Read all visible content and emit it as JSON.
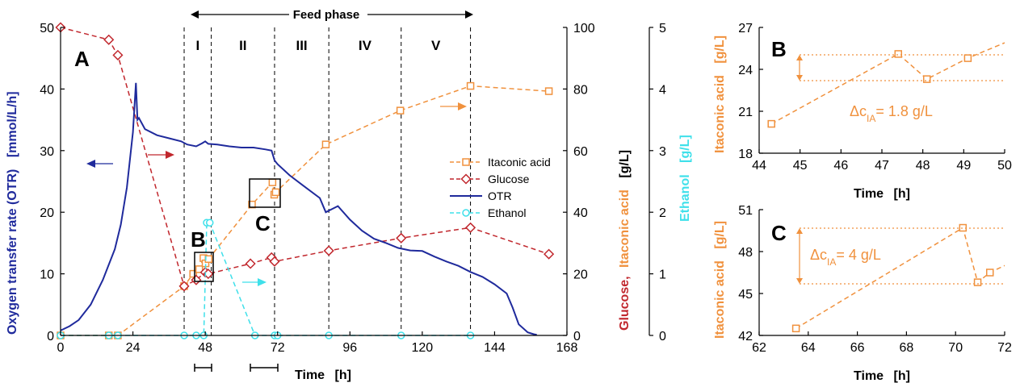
{
  "colors": {
    "itaconic": "#f0913d",
    "glucose": "#c1272d",
    "otr": "#1f2a9c",
    "ethanol": "#3fe0ea",
    "axis": "#000000"
  },
  "labels": {
    "main_letter": "A",
    "inset_b_letter": "B",
    "inset_c_letter": "C",
    "box_b_letter": "B",
    "box_c_letter": "C",
    "feed_phase": "Feed phase",
    "phases": [
      "I",
      "II",
      "III",
      "IV",
      "V"
    ],
    "left_ylabel_otr": "Oxygen transfer rate (OTR)",
    "left_ylabel_unit": "[mmol/L/h]",
    "right1_glucose": "Glucose,",
    "right1_itaconic": "Itaconic acid",
    "right1_unit": "[g/L]",
    "right2_ethanol": "Ethanol",
    "right2_unit": "[g/L]",
    "xlabel_time": "Time",
    "xlabel_unit": "[h]",
    "inset_ylabel": "Itaconic acid",
    "inset_yunit": "[g/L]",
    "delta_b_prefix": "Δc",
    "delta_b_sub": "IA",
    "delta_b_value": "= 1.8 g/L",
    "delta_c_prefix": "Δc",
    "delta_c_sub": "IA",
    "delta_c_value": "= 4 g/L"
  },
  "chart_data": [
    {
      "id": "main",
      "type": "line",
      "x_axis": {
        "ticks": [
          0,
          24,
          48,
          72,
          96,
          120,
          144,
          168
        ],
        "range": [
          0,
          168
        ]
      },
      "y_left": {
        "ticks": [
          0,
          10,
          20,
          30,
          40,
          50
        ],
        "range": [
          0,
          50
        ]
      },
      "y_right1": {
        "ticks": [
          0,
          20,
          40,
          60,
          80,
          100
        ],
        "range": [
          0,
          100
        ]
      },
      "y_right2": {
        "ticks": [
          0,
          1,
          2,
          3,
          4,
          5
        ],
        "range": [
          0,
          5
        ]
      },
      "phase_boundaries_h": [
        41,
        50,
        71,
        89,
        113,
        136
      ],
      "legend": [
        "Itaconic acid",
        "Glucose",
        "OTR",
        "Ethanol"
      ],
      "legend_position": "right",
      "series": [
        {
          "name": "Itaconic acid",
          "axis": "right1",
          "x": [
            0,
            16,
            19,
            41,
            44,
            46,
            47.4,
            48.1,
            49.1,
            63.5,
            70.3,
            70.9,
            71.4,
            88,
            112.7,
            136,
            162
          ],
          "y": [
            0,
            0,
            0,
            16,
            20,
            21.5,
            25.1,
            23.4,
            24.8,
            42.5,
            49.7,
            45.7,
            46.5,
            62,
            73,
            81,
            79.3
          ]
        },
        {
          "name": "Glucose",
          "axis": "right1",
          "x": [
            0,
            16,
            19,
            41,
            45,
            48,
            49,
            63,
            70,
            71,
            89,
            113,
            136,
            162
          ],
          "y": [
            100,
            96,
            91,
            16,
            18,
            20.5,
            20,
            23.3,
            25.3,
            24,
            27.5,
            31.6,
            35,
            26.4
          ]
        },
        {
          "name": "Ethanol",
          "axis": "right2",
          "x": [
            0,
            16,
            19,
            41,
            45,
            47.5,
            48.5,
            49.5,
            64.5,
            71,
            72,
            89,
            113,
            136
          ],
          "y": [
            0,
            0,
            0,
            0,
            0,
            0,
            1.83,
            1.83,
            0,
            0,
            0,
            0,
            0,
            0
          ]
        },
        {
          "name": "OTR",
          "axis": "left",
          "x": [
            0,
            3,
            6,
            10,
            14,
            18,
            20,
            22,
            24,
            25,
            25.5,
            26,
            28,
            32,
            36,
            40,
            42,
            45,
            47,
            48,
            49,
            52,
            56,
            60,
            64,
            68,
            70,
            71,
            72,
            76,
            80,
            86,
            88,
            90,
            92,
            96,
            100,
            104,
            108,
            112,
            116,
            120,
            124,
            128,
            132,
            136,
            140,
            144,
            148,
            150,
            152,
            155,
            157,
            158
          ],
          "y": [
            0.8,
            1.5,
            2.5,
            5,
            9,
            14,
            18,
            24,
            33,
            41,
            35,
            35.3,
            33.5,
            32.5,
            32,
            31.5,
            31,
            30.7,
            31.2,
            31.5,
            31.1,
            31,
            30.7,
            30.5,
            30.5,
            30.2,
            30,
            28.4,
            27.8,
            26,
            24.5,
            22.3,
            20,
            20.5,
            21,
            18.8,
            17,
            15.7,
            15,
            14.2,
            13.8,
            13.7,
            12.8,
            12,
            11.3,
            10.3,
            9.5,
            8.3,
            6.8,
            4.5,
            1.8,
            0.5,
            0.2,
            0.1
          ]
        }
      ]
    },
    {
      "id": "inset_b",
      "type": "line",
      "x_axis": {
        "ticks": [
          44,
          45,
          46,
          47,
          48,
          49,
          50
        ],
        "range": [
          44,
          50
        ]
      },
      "y_axis": {
        "ticks": [
          18,
          21,
          24,
          27
        ],
        "range": [
          18,
          27
        ]
      },
      "series": [
        {
          "name": "Itaconic acid",
          "x": [
            44.3,
            47.4,
            48.1,
            49.1,
            50
          ],
          "y": [
            20.1,
            25.1,
            23.3,
            24.8,
            25.9
          ]
        }
      ]
    },
    {
      "id": "inset_c",
      "type": "line",
      "x_axis": {
        "ticks": [
          62,
          64,
          66,
          68,
          70,
          72
        ],
        "range": [
          62,
          72
        ]
      },
      "y_axis": {
        "ticks": [
          42,
          45,
          48,
          51
        ],
        "range": [
          42,
          51
        ]
      },
      "series": [
        {
          "name": "Itaconic acid",
          "x": [
            63.5,
            70.3,
            70.9,
            71.4,
            72
          ],
          "y": [
            42.5,
            49.7,
            45.8,
            46.5,
            47
          ]
        }
      ]
    }
  ]
}
